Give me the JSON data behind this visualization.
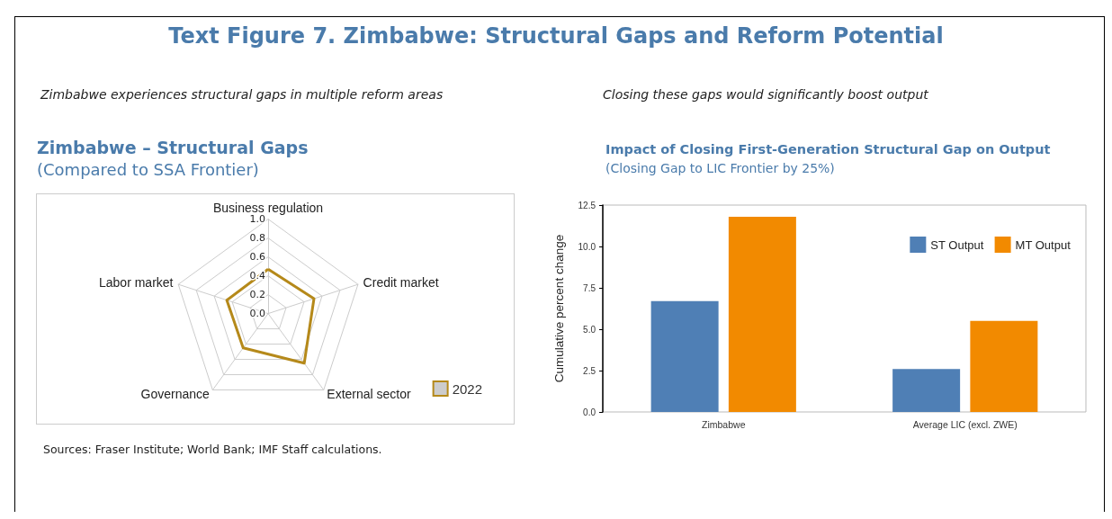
{
  "chart_data": [
    {
      "type": "radar",
      "title": "Zimbabwe – Structural Gaps",
      "subtitle": "(Compared to SSA Frontier)",
      "annotations": [
        "Text Figure 7. Zimbabwe: Structural Gaps and Reform Potential",
        "Zimbabwe experiences structural gaps in multiple reform areas",
        "Sources: Fraser Institute; World Bank; IMF Staff calculations."
      ],
      "categories": [
        "Business regulation",
        "Credit market",
        "External sector",
        "Governance",
        "Labor market"
      ],
      "series": [
        {
          "name": "2022",
          "color": "#b5891a",
          "values": [
            0.47,
            0.51,
            0.65,
            0.45,
            0.46
          ]
        }
      ],
      "ylim": [
        0,
        1
      ],
      "yticks": [
        {
          "value": 0,
          "label": "0.0"
        },
        {
          "value": 0.2,
          "label": "0.2"
        },
        {
          "value": 0.4,
          "label": "0.4"
        },
        {
          "value": 0.6,
          "label": "0.6"
        },
        {
          "value": 0.8,
          "label": "0.8"
        },
        {
          "value": 1,
          "label": "1.0"
        }
      ],
      "legend": "bottom right",
      "marker": "none"
    },
    {
      "type": "bar",
      "title": "Impact of Closing First-Generation Structural Gap on Output",
      "subtitle": "(Closing Gap to LIC Frontier by 25%)",
      "annotations": [
        "Closing these gaps would significantly boost output"
      ],
      "ylabel": "Cumulative percent change",
      "categories": [
        "Zimbabwe",
        "Average LIC (excl. ZWE)"
      ],
      "series": [
        {
          "name": "ST Output",
          "color": "#4f7fb5",
          "values": [
            6.7,
            2.6
          ]
        },
        {
          "name": "MT Output",
          "color": "#f28a00",
          "values": [
            11.8,
            5.5
          ]
        }
      ],
      "ylim": [
        0,
        12.5
      ],
      "yticks": [
        {
          "value": 0,
          "label": "0.0"
        },
        {
          "value": 2.5,
          "label": "2.5"
        },
        {
          "value": 5,
          "label": "5.0"
        },
        {
          "value": 7.5,
          "label": "7.5"
        },
        {
          "value": 10,
          "label": "10.0"
        },
        {
          "value": 12.5,
          "label": "12.5"
        }
      ],
      "grid": false,
      "legend": "top right"
    }
  ]
}
